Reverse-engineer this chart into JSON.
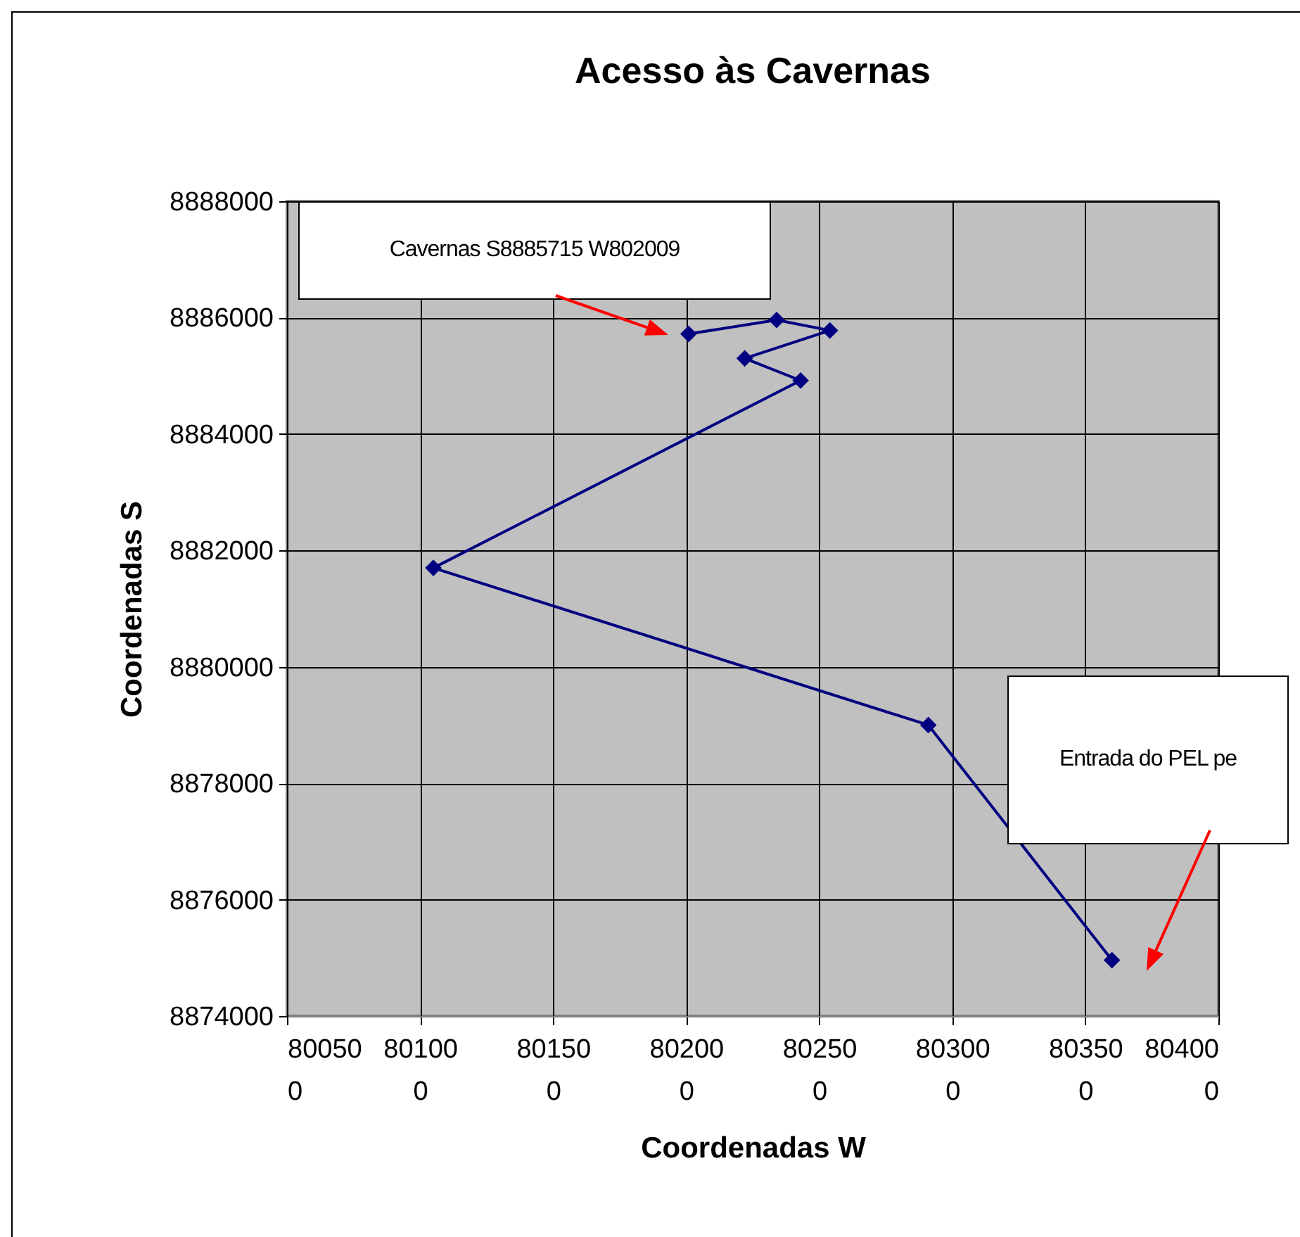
{
  "chart_data": {
    "type": "line",
    "title": "Acesso às Cavernas",
    "xlabel": "Coordenadas W",
    "ylabel": "Coordenadas S",
    "x": [
      803600,
      802910,
      801050,
      802430,
      802220,
      802540,
      802340,
      802009
    ],
    "series": [
      {
        "color": "#000080",
        "values": [
          8874960,
          8879000,
          8881700,
          8884920,
          8885300,
          8885780,
          8885960,
          8885720
        ]
      }
    ],
    "xlim": [
      800500,
      804000
    ],
    "xticks": [
      800500,
      801000,
      801500,
      802000,
      802500,
      803000,
      803500,
      804000
    ],
    "ylim": [
      8874000,
      8888000
    ],
    "yticks": [
      8874000,
      8876000,
      8878000,
      8880000,
      8882000,
      8884000,
      8886000,
      8888000
    ],
    "grid": true,
    "marker": "diamond",
    "line_style": "solid",
    "annotations": [
      "Cavernas S8885715 W802009",
      "Entrada do PEL pe"
    ]
  }
}
